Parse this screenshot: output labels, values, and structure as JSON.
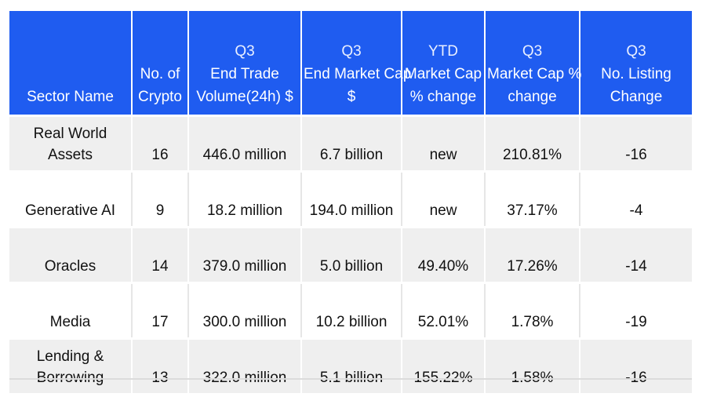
{
  "chart_data": {
    "type": "table",
    "columns": [
      {
        "key": "sector",
        "lines": [
          "",
          "",
          "Sector Name"
        ]
      },
      {
        "key": "count",
        "lines": [
          "",
          "No. of",
          "Crypto"
        ]
      },
      {
        "key": "volume",
        "lines": [
          "Q3",
          "End Trade",
          "Volume(24h) $"
        ]
      },
      {
        "key": "mcap",
        "lines": [
          "Q3",
          "End Market Cap",
          "$"
        ]
      },
      {
        "key": "ytd",
        "lines": [
          "YTD",
          "Market Cap",
          "% change"
        ]
      },
      {
        "key": "q3change",
        "lines": [
          "Q3",
          "Market Cap %",
          "change"
        ]
      },
      {
        "key": "listing",
        "lines": [
          "Q3",
          "No. Listing",
          "Change"
        ]
      }
    ],
    "rows": [
      {
        "sector": "Real World Assets",
        "count": "16",
        "volume": "446.0 million",
        "mcap": "6.7 billion",
        "ytd": "new",
        "q3change": "210.81%",
        "listing": "-16"
      },
      {
        "sector": "Generative AI",
        "count": "9",
        "volume": "18.2 million",
        "mcap": "194.0 million",
        "ytd": "new",
        "q3change": "37.17%",
        "listing": "-4"
      },
      {
        "sector": "Oracles",
        "count": "14",
        "volume": "379.0 million",
        "mcap": "5.0 billion",
        "ytd": "49.40%",
        "q3change": "17.26%",
        "listing": "-14"
      },
      {
        "sector": "Media",
        "count": "17",
        "volume": "300.0 million",
        "mcap": "10.2 billion",
        "ytd": "52.01%",
        "q3change": "1.78%",
        "listing": "-19"
      },
      {
        "sector": "Lending & Borrowing",
        "count": "13",
        "volume": "322.0 million",
        "mcap": "5.1 billion",
        "ytd": "155.22%",
        "q3change": "1.58%",
        "listing": "-16"
      }
    ]
  },
  "colors": {
    "header_bg": "#1f5cf0",
    "header_text": "#ffffff",
    "stripe": "#efefef"
  }
}
